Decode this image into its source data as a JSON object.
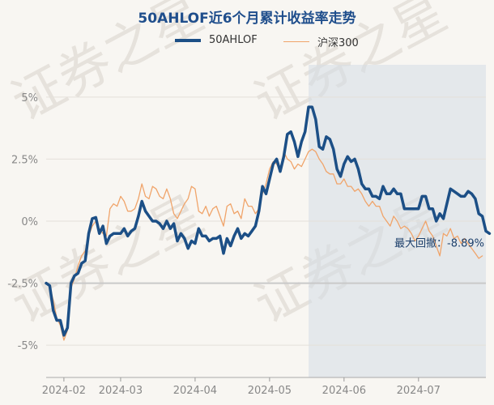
{
  "chart_data": {
    "type": "line",
    "title": "50AHLOF近6个月累计收益率走势",
    "xlabel": "",
    "ylabel": "",
    "ylim": [
      -6.3,
      6.3
    ],
    "yticks": [
      5,
      2.5,
      0,
      -2.5,
      -5
    ],
    "ytick_labels": [
      "5%",
      "2.5%",
      "0%",
      "-2.5%",
      "-5%"
    ],
    "x_range": [
      0,
      124
    ],
    "xticks": [
      {
        "x": 5,
        "label": "2024-02"
      },
      {
        "x": 21,
        "label": "2024-03"
      },
      {
        "x": 42,
        "label": "2024-04"
      },
      {
        "x": 63,
        "label": "2024-05"
      },
      {
        "x": 84,
        "label": "2024-06"
      },
      {
        "x": 105,
        "label": "2024-07"
      }
    ],
    "series": [
      {
        "name": "50AHLOF",
        "color": "#1c4f86",
        "values": [
          -2.5,
          -2.6,
          -3.6,
          -4.0,
          -4.0,
          -4.6,
          -4.3,
          -2.5,
          -2.2,
          -2.1,
          -1.7,
          -1.6,
          -0.5,
          0.1,
          0.15,
          -0.5,
          -0.2,
          -0.9,
          -0.6,
          -0.5,
          -0.5,
          -0.5,
          -0.3,
          -0.6,
          -0.4,
          -0.3,
          0.2,
          0.8,
          0.4,
          0.2,
          0.0,
          0.0,
          -0.1,
          -0.3,
          0.0,
          -0.3,
          -0.1,
          -0.8,
          -0.5,
          -0.7,
          -1.1,
          -0.8,
          -0.9,
          -0.3,
          -0.6,
          -0.6,
          -0.8,
          -0.7,
          -0.7,
          -0.6,
          -1.3,
          -0.7,
          -1.0,
          -0.6,
          -0.3,
          -0.7,
          -0.5,
          -0.6,
          -0.4,
          -0.2,
          0.4,
          1.4,
          1.1,
          1.7,
          2.3,
          2.5,
          2.0,
          2.6,
          3.5,
          3.6,
          3.2,
          2.6,
          3.2,
          3.6,
          4.6,
          4.6,
          4.1,
          3.0,
          2.9,
          3.4,
          3.3,
          2.9,
          2.1,
          1.8,
          2.3,
          2.6,
          2.4,
          2.5,
          2.1,
          1.5,
          1.3,
          1.3,
          1.0,
          1.0,
          0.9,
          1.4,
          1.1,
          1.1,
          1.3,
          1.1,
          1.1,
          0.5,
          0.5,
          0.5,
          0.5,
          0.5,
          1.0,
          1.0,
          0.5,
          0.5,
          0.0,
          0.3,
          0.1,
          0.7,
          1.3,
          1.2,
          1.1,
          1.0,
          1.0,
          1.2,
          1.1,
          0.9,
          0.3,
          0.2,
          -0.4,
          -0.5
        ],
        "end_label": "最大回撤：-8.89%"
      },
      {
        "name": "沪深300",
        "color": "#f0a46a",
        "values": [
          -2.5,
          -2.6,
          -3.2,
          -3.9,
          -4.2,
          -4.8,
          -4.4,
          -2.7,
          -2.3,
          -1.8,
          -1.4,
          -1.2,
          -0.6,
          -0.2,
          0.0,
          -0.3,
          -0.5,
          -0.6,
          0.5,
          0.7,
          0.6,
          1.0,
          0.8,
          0.4,
          0.4,
          0.5,
          0.9,
          1.5,
          1.0,
          0.9,
          1.4,
          1.3,
          1.0,
          0.9,
          1.3,
          0.9,
          0.3,
          0.1,
          0.4,
          0.7,
          0.9,
          1.4,
          1.3,
          0.4,
          0.3,
          0.6,
          0.2,
          0.5,
          0.6,
          0.2,
          -0.2,
          0.6,
          0.7,
          0.3,
          0.4,
          0.1,
          0.9,
          0.6,
          0.6,
          0.3,
          0.5,
          1.1,
          1.5,
          2.1,
          2.4,
          2.3,
          2.0,
          2.8,
          2.5,
          2.4,
          2.1,
          2.3,
          2.2,
          2.5,
          2.8,
          2.9,
          2.8,
          2.5,
          2.3,
          2.0,
          1.9,
          1.9,
          1.5,
          1.5,
          1.7,
          1.4,
          1.4,
          1.2,
          1.3,
          1.1,
          0.8,
          0.6,
          0.8,
          0.6,
          0.6,
          0.2,
          0.0,
          -0.2,
          0.2,
          0.0,
          -0.3,
          -0.2,
          -0.3,
          -0.5,
          -0.8,
          -0.6,
          -0.3,
          0.0,
          -0.4,
          -0.6,
          -1.0,
          -1.4,
          -0.5,
          -0.6,
          -0.3,
          -0.7,
          -0.6,
          -0.9,
          -0.7,
          -0.9,
          -1.1,
          -1.3,
          -1.5,
          -1.4
        ]
      }
    ],
    "shaded_region": {
      "x_start": 74,
      "x_end": 124
    },
    "reference_line": -2.5,
    "watermark": "证券之星",
    "legend_position": "top"
  }
}
